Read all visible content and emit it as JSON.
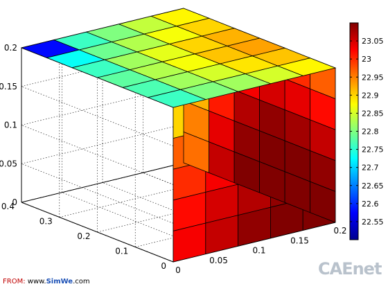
{
  "chart_data": {
    "type": "heatmap",
    "subtype": "3d-voxel-grid",
    "grid": {
      "nx": 5,
      "ny": 6,
      "nz": 5
    },
    "x_ticks": [
      "0",
      "0.05",
      "0.1",
      "0.15",
      "0.2"
    ],
    "y_ticks": [
      "0",
      "0.1",
      "0.2",
      "0.3",
      "0.4"
    ],
    "z_ticks": [
      "0",
      "0.05",
      "0.1",
      "0.15",
      "0.2"
    ],
    "xlim": [
      0,
      0.2
    ],
    "ylim": [
      0,
      0.4
    ],
    "zlim": [
      0,
      0.2
    ],
    "colorbar": {
      "colormap": "jet",
      "range": [
        22.5,
        23.1
      ],
      "ticks": [
        "22.55",
        "22.6",
        "22.65",
        "22.7",
        "22.75",
        "22.8",
        "22.85",
        "22.9",
        "22.95",
        "23",
        "23.05"
      ]
    },
    "faces": {
      "top": {
        "description": "temperature on z=0.2 face, rows by x index (front to back), columns by y index (left to right)",
        "values": [
          [
            22.88,
            22.91,
            22.93,
            22.92,
            22.9,
            22.88
          ],
          [
            22.85,
            22.89,
            22.91,
            22.9,
            22.87,
            22.84
          ],
          [
            22.82,
            22.85,
            22.87,
            22.86,
            22.83,
            22.8
          ],
          [
            22.8,
            22.82,
            22.83,
            22.82,
            22.79,
            22.76
          ],
          [
            22.76,
            22.77,
            22.78,
            22.76,
            22.73,
            22.58
          ]
        ]
      },
      "front": {
        "description": "temperature on x=0.2 face, rows by z index (top to bottom), columns by y index (left to right)",
        "values": [
          [
            22.97,
            23.0,
            23.01,
            22.98,
            22.92,
            22.86
          ],
          [
            23.02,
            23.04,
            23.05,
            23.03,
            22.98,
            22.88
          ],
          [
            23.06,
            23.08,
            23.09,
            23.07,
            23.01,
            22.92
          ],
          [
            23.09,
            23.1,
            23.1,
            23.09,
            23.04,
            22.95
          ],
          [
            23.1,
            23.11,
            23.11,
            23.1,
            23.06,
            22.96
          ]
        ]
      },
      "left": {
        "description": "temperature on y=0 face, rows by z index (top to bottom), columns by x index (back to front)",
        "values": [
          [
            22.9,
            22.91,
            22.93,
            22.94,
            22.95
          ],
          [
            22.97,
            22.99,
            23.0,
            23.01,
            23.02
          ],
          [
            23.0,
            23.03,
            23.05,
            23.06,
            23.06
          ],
          [
            23.02,
            23.05,
            23.07,
            23.09,
            23.09
          ],
          [
            23.03,
            23.06,
            23.09,
            23.1,
            23.11
          ]
        ]
      }
    }
  },
  "credit": {
    "label": "FROM:",
    "url_prefix": "www.",
    "url_brand": "SimWe",
    "url_suffix": ".com"
  },
  "watermark": {
    "brand": "CAEnet"
  }
}
